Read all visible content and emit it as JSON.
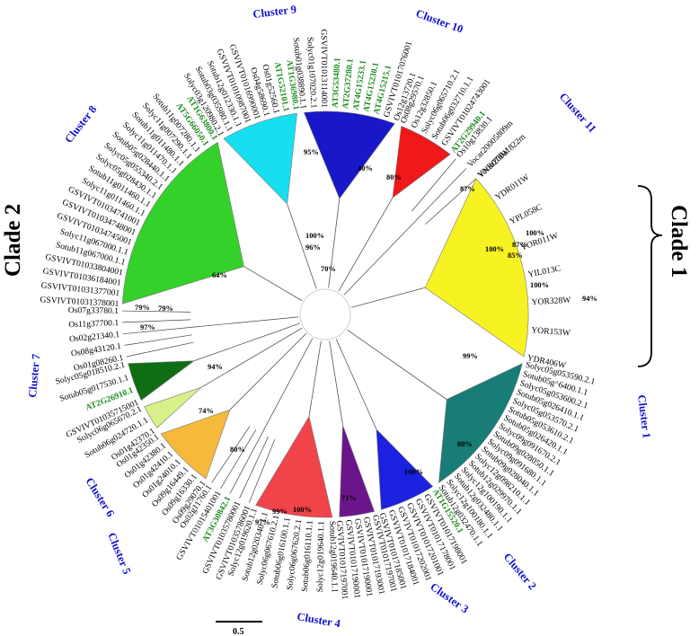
{
  "clades": [
    {
      "label": "Clade 1"
    },
    {
      "label": "Clade 2"
    }
  ],
  "clusters": [
    {
      "label": "Cluster 1"
    },
    {
      "label": "Cluster 2"
    },
    {
      "label": "Cluster 3"
    },
    {
      "label": "Cluster 4"
    },
    {
      "label": "Cluster 5"
    },
    {
      "label": "Cluster 6"
    },
    {
      "label": "Cluster 7"
    },
    {
      "label": "Cluster 8"
    },
    {
      "label": "Cluster 9"
    },
    {
      "label": "Cluster 10"
    },
    {
      "label": "Cluster 11"
    }
  ],
  "scale_label": "0.5",
  "bootstrap": [
    "100%",
    "87%",
    "85%",
    "100%",
    "100%",
    "94%",
    "70%",
    "99%",
    "79%",
    "100%",
    "80%",
    "71%",
    "100%",
    "99%",
    "97%",
    "74%",
    "80%",
    "94%",
    "79%",
    "97%",
    "64%",
    "100%",
    "96%",
    "95%",
    "40%",
    "80%",
    "87%"
  ],
  "groups": [
    {
      "name": "clade1",
      "wedge_color": "#f7f322",
      "leaves": [
        "YNR070W",
        "YDR011W",
        "YPL058C",
        "YOR011W",
        "YIL013C",
        "YOR328W",
        "YOR153W",
        "YDR406W"
      ]
    },
    {
      "name": "cluster1",
      "wedge_color": "#177d76",
      "leaves": [
        "Solyc05g053590.2.1",
        "Sotub05g^6400.1.1",
        "Solyc05g053600.2.1",
        "Sotub05g026410.1.1",
        "Solyc05g053570.2.1",
        "Sotub05g053610.2.1",
        "Sotub05g026420.1.1",
        "Solyc09g091670.2.1",
        "Sotub09g028050.1.1",
        "Solyc09g091680.1.1",
        "Sotub09g028040.1.1",
        "Solyc12g098210.1.1",
        "Sotub12g029970.1.1",
        "Solyc12g100190.1.1",
        "Sotub12g032480.1.1",
        "Solyc12g100180.1.1",
        "Sotub12g032470.1.1"
      ]
    },
    {
      "name": "cluster2",
      "wedge_color": "#1a22e0",
      "leaves": [
        "AT1G15520.1",
        "GSVIVT01017198001",
        "GSVIVT01017178001",
        "GSVIVT01017201001",
        "GSVIVT01017202001",
        "GSVIVT01017184001",
        "GSVIVT01017185001"
      ]
    },
    {
      "name": "cluster3",
      "wedge_color": "#6a168a",
      "leaves": [
        "GSVIVT01017197001",
        "GSVIVT01017193001",
        "GSVIVT01017190001",
        "GSVIVT01017190001",
        "GSVIVT01017197001"
      ]
    },
    {
      "name": "cluster4",
      "wedge_color": "#f0434a",
      "leaves": [
        "Sotub12g019640.1.1",
        "Solyc12g019640.1.1",
        "Sotub06g016110.1.1",
        "Solyc06g067620.2.1",
        "Sotub06g016100.1.1",
        "Solyc06g067610.2.1",
        "Sotub12g020340.1.1",
        "Solyc12g019620.1.1"
      ]
    },
    {
      "name": "cluster5",
      "wedge_color": "#ffffff",
      "leaves": [
        "GSVIVT01035786001",
        "GSVIVT01035780001",
        "AT3G30842.1",
        "GSVIVT01015401001",
        "Os02g11760.1"
      ]
    },
    {
      "name": "cluster6",
      "wedge_color": "#f5b93b",
      "leaves": [
        "Os09g29070.1",
        "Os09g16330.1",
        "Os09g16449.1",
        "Os01g24010.1",
        "Os01g42410.1",
        "Os01g42380.1",
        "Os01g42350.1"
      ]
    },
    {
      "name": "cluster6b",
      "wedge_color": "#d8f08a",
      "leaves": [
        "Os01g42370.1",
        "Sotub06g024720.1.1",
        "Solyc06g065670.2.1"
      ]
    },
    {
      "name": "cluster7",
      "wedge_color": "#0f6e14",
      "leaves": [
        "GSVIVT01035715001",
        "AT2G26910.1",
        "Sotub05g017530.1.1",
        "Solyc05g018510.2.1"
      ]
    },
    {
      "name": "rice-mid",
      "wedge_color": "#ffffff",
      "leaves": [
        "Os01g08260.1",
        "Os08g43120.1",
        "Os02g21340.1",
        "Os11g37700.1",
        "Os07g33780.1"
      ]
    },
    {
      "name": "cluster8",
      "wedge_color": "#34d12a",
      "leaves": [
        "GSVIVT01031378001",
        "GSVIVT01031377001",
        "GSVIVT01036184001",
        "GSVIVT01033804001",
        "Sotub11g067000.1.1",
        "Solyc11g067000.1.1",
        "GSVIVT01034745001",
        "GSVIVT01034748001",
        "GSVIVT01034741001",
        "Solyc11g011460.1.1",
        "Sotub11g011460.1.1",
        "Solyc05g028430.1.1",
        "Solyc05g055340.2.1",
        "Sotub05g028440.1.1",
        "Solyc11g011470.1.1",
        "Sotub11g011480.1.1",
        "Solyc11g007290.1.1",
        "Sotub11g007280.1.1",
        "AT5G66050.1",
        "AT1G63800.1"
      ]
    },
    {
      "name": "cluster9",
      "wedge_color": "#16e0f0",
      "leaves": [
        "Solyc03g120980.2.1",
        "Sotub03g035980.1.1",
        "Sotub12g012330.1.1",
        "GSVIVT01010987001",
        "GSVIVT01016990001",
        "Os04g58690.1",
        "Os01g52560.1",
        "AT1G52101.1",
        "AT1G36980.1"
      ]
    },
    {
      "name": "cluster10",
      "wedge_color": "#1818c8",
      "leaves": [
        "Sotub01g038890.1.1",
        "Solyc01g107020.2.1",
        "GSVIVT01013114001",
        "AT3G53480.1",
        "AT2G37280.1",
        "AT4G15233.1",
        "AT4G15230.1",
        "AT4G15215.1",
        "GSVIVT01017076001",
        "Os12g13720.1"
      ]
    },
    {
      "name": "cluster11",
      "wedge_color": "#f01818",
      "leaves": [
        "Os08g29570.1",
        "Os12g32850.1",
        "Solyc06g065710.2.1",
        "Sotub06g032710.1.1",
        "GSVIVT01024743001",
        "AT2G29940.1"
      ]
    },
    {
      "name": "outgroup",
      "wedge_color": "#ffffff",
      "leaves": [
        "Os10g13830.1",
        "Vocar20005809m",
        "Vocar20011822m"
      ]
    }
  ]
}
